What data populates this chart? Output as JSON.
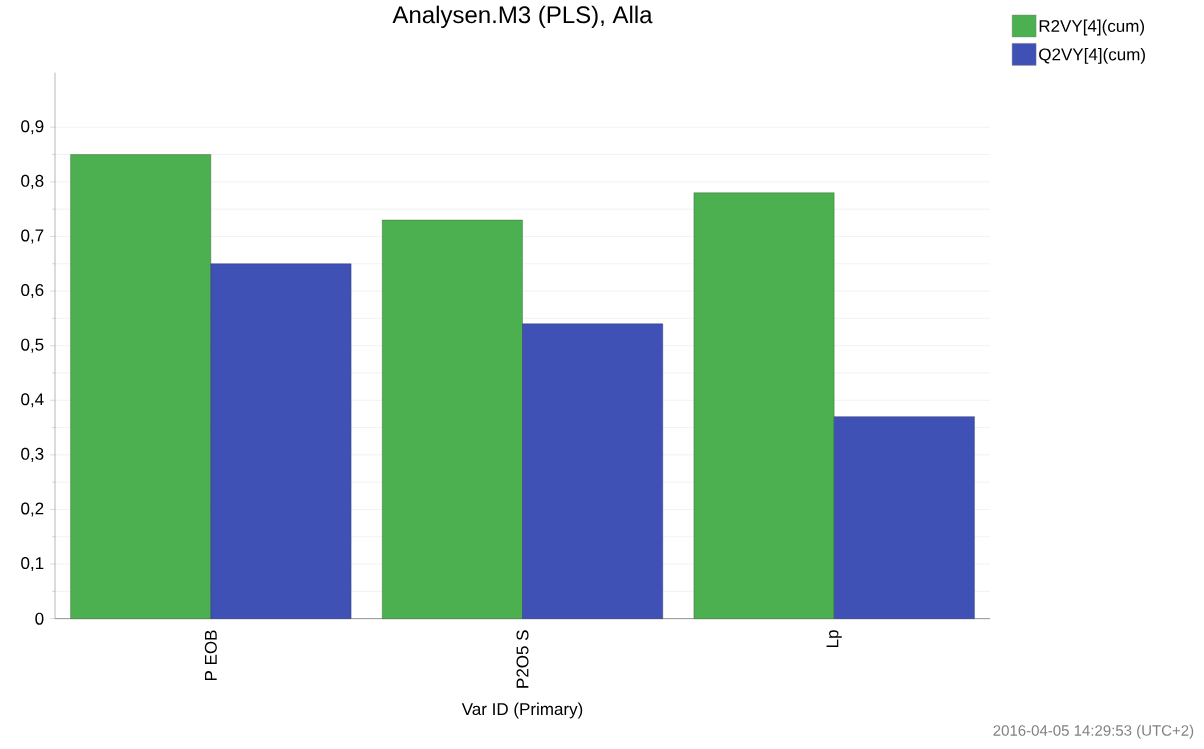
{
  "chart_data": {
    "type": "bar",
    "title": "Analysen.M3 (PLS), Alla",
    "xlabel": "Var ID (Primary)",
    "categories": [
      "P EOB",
      "P2O5 S",
      "Lp"
    ],
    "series": [
      {
        "name": "R2VY[4](cum)",
        "color": "#4caf50",
        "values": [
          0.85,
          0.73,
          0.78
        ]
      },
      {
        "name": "Q2VY[4](cum)",
        "color": "#3f51b5",
        "values": [
          0.65,
          0.54,
          0.37
        ]
      }
    ],
    "ylim": [
      0,
      1.0
    ],
    "yticks": [
      0,
      {
        "value": 0.1,
        "label": "0,1"
      },
      {
        "value": 0.2,
        "label": "0,2"
      },
      {
        "value": 0.3,
        "label": "0,3"
      },
      {
        "value": 0.4,
        "label": "0,4"
      },
      {
        "value": 0.5,
        "label": "0,5"
      },
      {
        "value": 0.6,
        "label": "0,6"
      },
      {
        "value": 0.7,
        "label": "0,7"
      },
      {
        "value": 0.8,
        "label": "0,8"
      },
      {
        "value": 0.9,
        "label": "0,9"
      }
    ],
    "grid": "y",
    "legend": "top right",
    "annotations": [
      "2016-04-05 14:29:53 (UTC+2)"
    ]
  }
}
